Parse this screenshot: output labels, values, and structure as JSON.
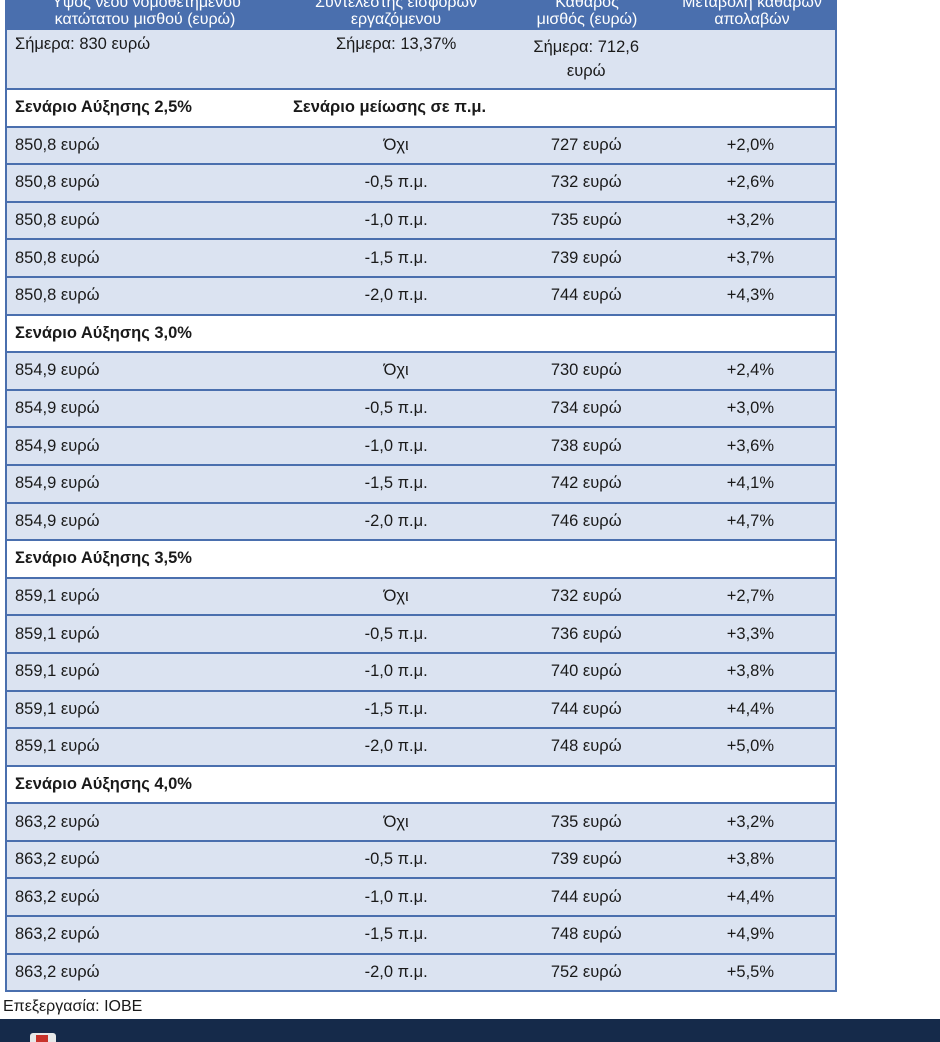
{
  "header": {
    "col1": [
      "Ύψος νέου νομοθετημένου",
      "κατώτατου μισθού (ευρώ)"
    ],
    "col2": [
      "Συντελεστής εισφορών",
      "εργαζόμενου"
    ],
    "col3": [
      "Καθαρός",
      "μισθός (ευρώ)"
    ],
    "col4": [
      "Μεταβολή καθαρών",
      "απολαβών"
    ]
  },
  "today": {
    "col1": "Σήμερα: 830 ευρώ",
    "col2": "Σήμερα: 13,37%",
    "col3_line1": "Σήμερα: 712,6",
    "col3_line2": "ευρώ"
  },
  "reduction_label": "Σενάριο μείωσης σε π.μ.",
  "scenarios": [
    {
      "title": "Σενάριο Αύξησης 2,5%",
      "rows": [
        [
          "850,8 ευρώ",
          "Όχι",
          "727 ευρώ",
          "+2,0%"
        ],
        [
          "850,8 ευρώ",
          "-0,5 π.μ.",
          "732 ευρώ",
          "+2,6%"
        ],
        [
          "850,8 ευρώ",
          "-1,0 π.μ.",
          "735 ευρώ",
          "+3,2%"
        ],
        [
          "850,8 ευρώ",
          "-1,5 π.μ.",
          "739 ευρώ",
          "+3,7%"
        ],
        [
          "850,8 ευρώ",
          "-2,0 π.μ.",
          "744 ευρώ",
          "+4,3%"
        ]
      ]
    },
    {
      "title": "Σενάριο Αύξησης 3,0%",
      "rows": [
        [
          "854,9 ευρώ",
          "Όχι",
          "730 ευρώ",
          "+2,4%"
        ],
        [
          "854,9 ευρώ",
          "-0,5 π.μ.",
          "734 ευρώ",
          "+3,0%"
        ],
        [
          "854,9 ευρώ",
          "-1,0 π.μ.",
          "738 ευρώ",
          "+3,6%"
        ],
        [
          "854,9 ευρώ",
          "-1,5 π.μ.",
          "742 ευρώ",
          "+4,1%"
        ],
        [
          "854,9 ευρώ",
          "-2,0 π.μ.",
          "746 ευρώ",
          "+4,7%"
        ]
      ]
    },
    {
      "title": "Σενάριο Αύξησης 3,5%",
      "rows": [
        [
          "859,1 ευρώ",
          "Όχι",
          "732 ευρώ",
          "+2,7%"
        ],
        [
          "859,1 ευρώ",
          "-0,5 π.μ.",
          "736 ευρώ",
          "+3,3%"
        ],
        [
          "859,1 ευρώ",
          "-1,0 π.μ.",
          "740 ευρώ",
          "+3,8%"
        ],
        [
          "859,1 ευρώ",
          "-1,5 π.μ.",
          "744 ευρώ",
          "+4,4%"
        ],
        [
          "859,1 ευρώ",
          "-2,0 π.μ.",
          "748 ευρώ",
          "+5,0%"
        ]
      ]
    },
    {
      "title": "Σενάριο Αύξησης 4,0%",
      "rows": [
        [
          "863,2 ευρώ",
          "Όχι",
          "735 ευρώ",
          "+3,2%"
        ],
        [
          "863,2 ευρώ",
          "-0,5 π.μ.",
          "739 ευρώ",
          "+3,8%"
        ],
        [
          "863,2 ευρώ",
          "-1,0 π.μ.",
          "744 ευρώ",
          "+4,4%"
        ],
        [
          "863,2 ευρώ",
          "-1,5 π.μ.",
          "748 ευρώ",
          "+4,9%"
        ],
        [
          "863,2 ευρώ",
          "-2,0 π.μ.",
          "752 ευρώ",
          "+5,5%"
        ]
      ]
    }
  ],
  "source": "Επεξεργασία: ΙΟΒΕ",
  "taskbar": {
    "icon": "app-icon",
    "color": "#152a4a"
  }
}
